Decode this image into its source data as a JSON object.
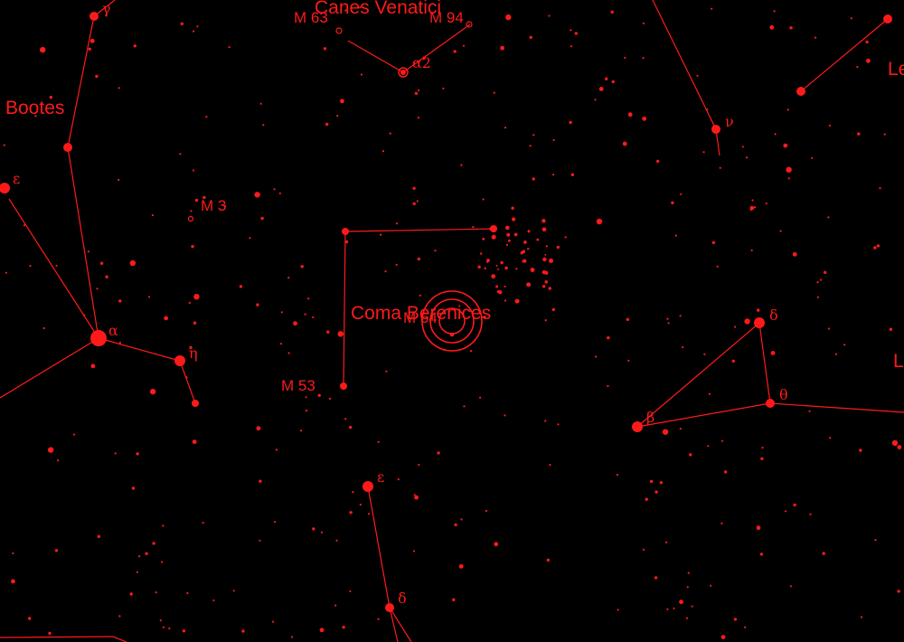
{
  "palette": {
    "background": "#000000",
    "ink": "#ff1a1a"
  },
  "constellations": {
    "canes_venatici": "Canes Venatici",
    "bootes": "Bootes",
    "coma_berenices": "Coma Berenices",
    "leo_partial_1": "Le",
    "leo_partial_2": "L"
  },
  "deep_sky_objects": {
    "m63": "M 63",
    "m94": "M 94",
    "m3": "M 3",
    "m53": "M 53",
    "m64": "M 64"
  },
  "star_labels": {
    "cvn_alpha2": "α2",
    "boo_gamma": "γ",
    "boo_epsilon": "ε",
    "boo_alpha": "α",
    "boo_eta": "η",
    "uma_nu": "ν",
    "leo_delta": "δ",
    "leo_theta": "θ",
    "leo_beta": "β",
    "vir_epsilon": "ε",
    "vir_delta": "δ"
  },
  "field_marker": {
    "icon": "target-reticle-icon",
    "shape": "three concentric circles with center dot"
  }
}
